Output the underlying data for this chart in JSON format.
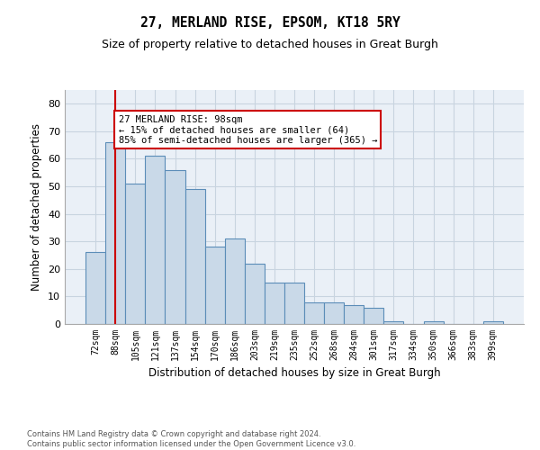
{
  "title1": "27, MERLAND RISE, EPSOM, KT18 5RY",
  "title2": "Size of property relative to detached houses in Great Burgh",
  "xlabel": "Distribution of detached houses by size in Great Burgh",
  "ylabel": "Number of detached properties",
  "categories": [
    "72sqm",
    "88sqm",
    "105sqm",
    "121sqm",
    "137sqm",
    "154sqm",
    "170sqm",
    "186sqm",
    "203sqm",
    "219sqm",
    "235sqm",
    "252sqm",
    "268sqm",
    "284sqm",
    "301sqm",
    "317sqm",
    "334sqm",
    "350sqm",
    "366sqm",
    "383sqm",
    "399sqm"
  ],
  "values": [
    26,
    66,
    51,
    61,
    56,
    49,
    28,
    31,
    22,
    15,
    15,
    8,
    8,
    7,
    6,
    1,
    0,
    1,
    0,
    0,
    1
  ],
  "bar_color": "#c9d9e8",
  "bar_edge_color": "#5b8db8",
  "vline_x": 1,
  "vline_color": "#cc0000",
  "annotation_text": "27 MERLAND RISE: 98sqm\n← 15% of detached houses are smaller (64)\n85% of semi-detached houses are larger (365) →",
  "annotation_box_color": "#ffffff",
  "annotation_box_edge": "#cc0000",
  "ylim": [
    0,
    85
  ],
  "yticks": [
    0,
    10,
    20,
    30,
    40,
    50,
    60,
    70,
    80
  ],
  "footer": "Contains HM Land Registry data © Crown copyright and database right 2024.\nContains public sector information licensed under the Open Government Licence v3.0.",
  "grid_color": "#c8d4e0",
  "background_color": "#eaf0f7"
}
